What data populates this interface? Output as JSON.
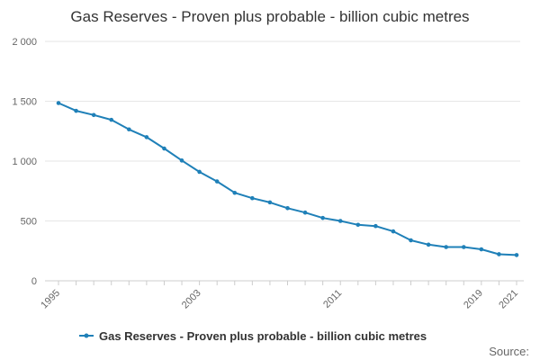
{
  "chart_data": {
    "type": "line",
    "title": "Gas Reserves - Proven plus probable - billion cubic metres",
    "xlabel": "",
    "ylabel": "",
    "x": [
      1995,
      1996,
      1997,
      1998,
      1999,
      2000,
      2001,
      2002,
      2003,
      2004,
      2005,
      2006,
      2007,
      2008,
      2009,
      2010,
      2011,
      2012,
      2013,
      2014,
      2015,
      2016,
      2017,
      2018,
      2019,
      2020,
      2021
    ],
    "xticks": [
      1995,
      2003,
      2011,
      2019,
      2021
    ],
    "xtick_labels": [
      "1995",
      "2003",
      "2011",
      "2019",
      "2021"
    ],
    "ylim": [
      0,
      2000
    ],
    "yticks": [
      0,
      500,
      1000,
      1500,
      2000
    ],
    "ytick_labels": [
      "0",
      "500",
      "1 000",
      "1 500",
      "2 000"
    ],
    "grid": true,
    "legend_position": "bottom",
    "series": [
      {
        "name": "Gas Reserves - Proven plus probable - billion cubic metres",
        "color": "#1f80b8",
        "values": [
          1485,
          1420,
          1385,
          1345,
          1265,
          1200,
          1105,
          1005,
          910,
          830,
          735,
          690,
          655,
          607,
          570,
          525,
          500,
          468,
          457,
          413,
          338,
          302,
          282,
          282,
          263,
          222,
          215
        ]
      }
    ]
  },
  "footer": {
    "source_label": "Source:"
  }
}
